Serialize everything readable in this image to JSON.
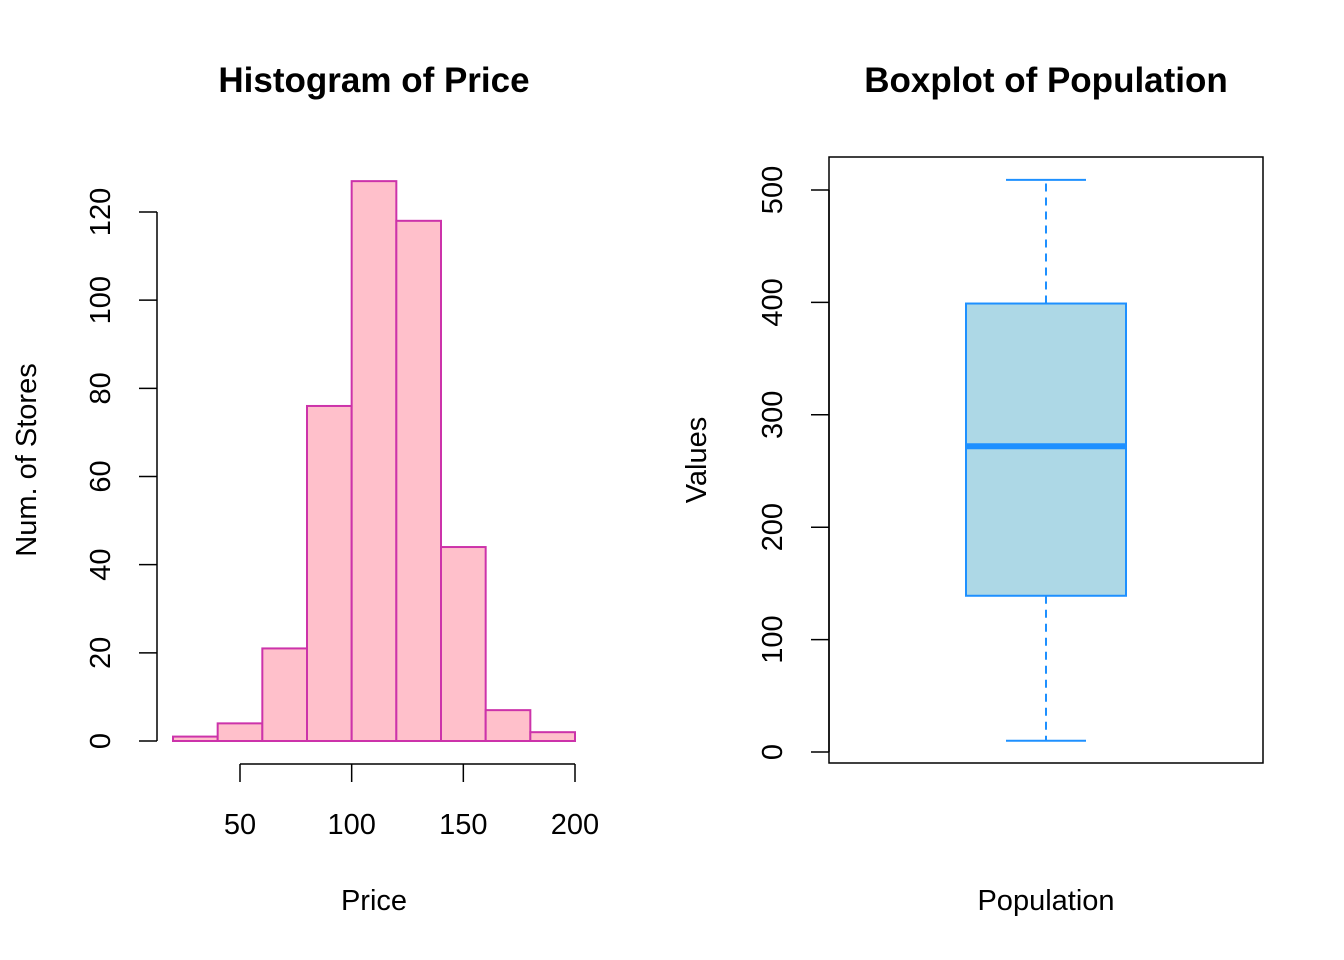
{
  "chart_data": [
    {
      "type": "bar",
      "subtype": "histogram",
      "title": "Histogram of Price",
      "xlabel": "Price",
      "ylabel": "Num. of Stores",
      "bins": [
        {
          "start": 20,
          "end": 40,
          "count": 1
        },
        {
          "start": 40,
          "end": 60,
          "count": 4
        },
        {
          "start": 60,
          "end": 80,
          "count": 21
        },
        {
          "start": 80,
          "end": 100,
          "count": 76
        },
        {
          "start": 100,
          "end": 120,
          "count": 127
        },
        {
          "start": 120,
          "end": 140,
          "count": 118
        },
        {
          "start": 140,
          "end": 160,
          "count": 44
        },
        {
          "start": 160,
          "end": 180,
          "count": 7
        },
        {
          "start": 180,
          "end": 200,
          "count": 2
        }
      ],
      "xlim": [
        20,
        200
      ],
      "ylim": [
        0,
        127
      ],
      "xticks": [
        50,
        100,
        150,
        200
      ],
      "yticks": [
        0,
        20,
        40,
        60,
        80,
        100,
        120
      ],
      "bar_fill": "#ffc0cb",
      "bar_border": "#cc33aa",
      "grid": false
    },
    {
      "type": "boxplot",
      "title": "Boxplot of Population",
      "xlabel": "Population",
      "ylabel": "Values",
      "stats": {
        "min": 10,
        "q1": 139,
        "median": 272,
        "q3": 399,
        "max": 509
      },
      "ylim": [
        0,
        520
      ],
      "yticks": [
        0,
        100,
        200,
        300,
        400,
        500
      ],
      "box_fill": "#add8e6",
      "box_border": "#1e90ff",
      "grid": false
    }
  ]
}
